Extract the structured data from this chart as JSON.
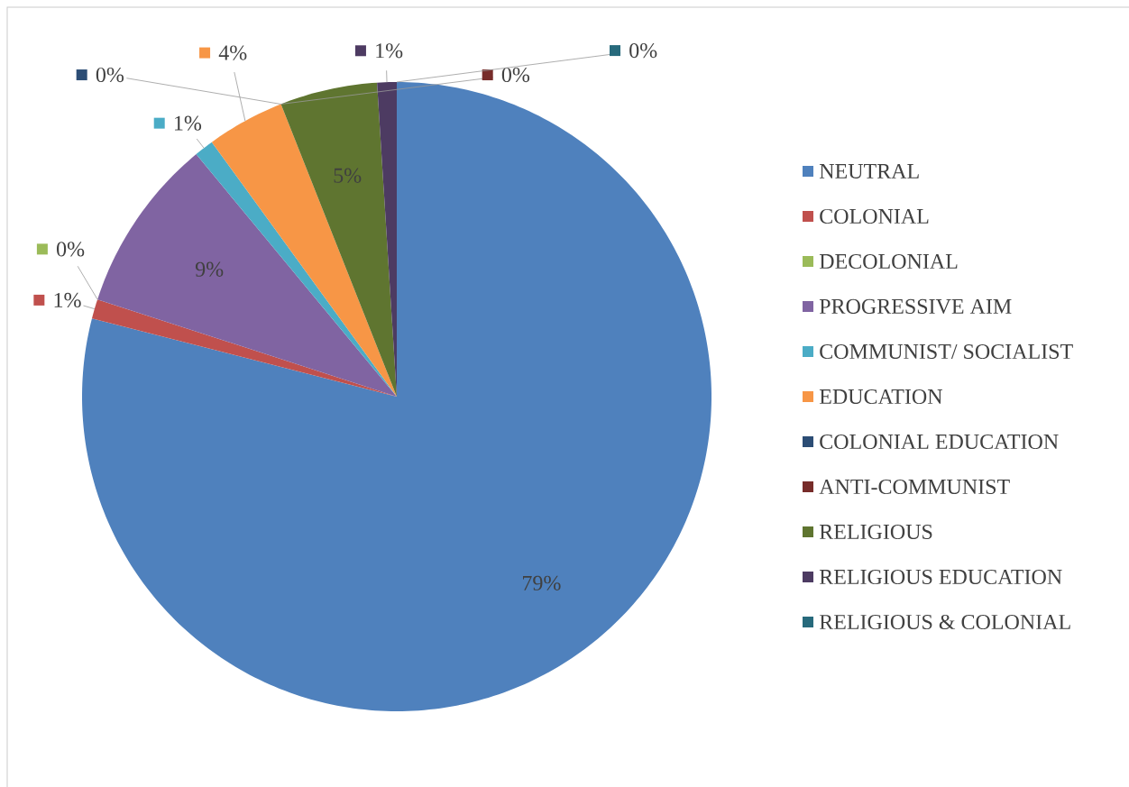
{
  "chart_data": {
    "type": "pie",
    "categories": [
      "NEUTRAL",
      "COLONIAL",
      "DECOLONIAL",
      "PROGRESSIVE AIM",
      "COMMUNIST/ SOCIALIST",
      "EDUCATION",
      "COLONIAL EDUCATION",
      "ANTI-COMMUNIST",
      "RELIGIOUS",
      "RELIGIOUS EDUCATION",
      "RELIGIOUS & COLONIAL"
    ],
    "values": [
      79,
      1,
      0,
      9,
      1,
      4,
      0,
      0,
      5,
      1,
      0
    ],
    "value_labels": [
      "79%",
      "1%",
      "0%",
      "9%",
      "1%",
      "4%",
      "0%",
      "0%",
      "5%",
      "1%",
      "0%"
    ],
    "colors": [
      "#4f81bd",
      "#c0504d",
      "#9bbb59",
      "#8064a2",
      "#4bacc6",
      "#f79646",
      "#2c4d75",
      "#772c2a",
      "#5f7530",
      "#4d3b62",
      "#276a7c"
    ],
    "legend": "right"
  }
}
